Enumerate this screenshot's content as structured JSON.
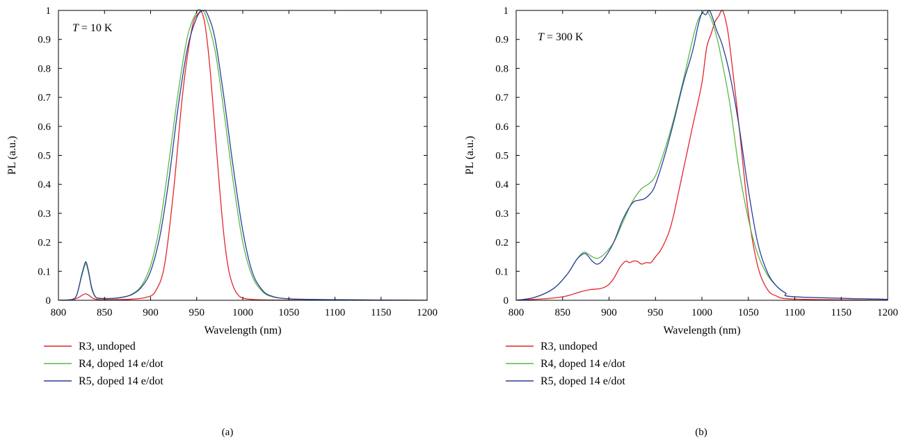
{
  "chart_data": [
    {
      "type": "line",
      "panel_label": "(a)",
      "annotation": {
        "symbol": "T",
        "text": " = 10 K"
      },
      "xlabel": "Wavelength (nm)",
      "ylabel": "PL (a.u.)",
      "xlim": [
        800,
        1200
      ],
      "ylim": [
        0,
        1
      ],
      "xticks": [
        "800",
        "850",
        "900",
        "950",
        "1000",
        "1050",
        "1100",
        "1150",
        "1200"
      ],
      "yticks": [
        "0",
        "0.1",
        "0.2",
        "0.3",
        "0.4",
        "0.5",
        "0.6",
        "0.7",
        "0.8",
        "0.9",
        "1"
      ],
      "legend_position": "below-left",
      "series": [
        {
          "name": "R3, undoped",
          "color": "#e3242b",
          "x": [
            800,
            815,
            822,
            826,
            830,
            834,
            838,
            845,
            860,
            880,
            895,
            905,
            915,
            925,
            935,
            945,
            952,
            956,
            960,
            965,
            970,
            975,
            980,
            985,
            990,
            995,
            1000,
            1010,
            1030,
            1100,
            1200
          ],
          "y": [
            0,
            0.002,
            0.01,
            0.018,
            0.022,
            0.015,
            0.006,
            0.002,
            0.002,
            0.004,
            0.01,
            0.03,
            0.12,
            0.38,
            0.72,
            0.94,
            0.99,
            0.99,
            0.93,
            0.78,
            0.58,
            0.38,
            0.21,
            0.1,
            0.045,
            0.018,
            0.008,
            0.003,
            0.001,
            0,
            0
          ]
        },
        {
          "name": "R4, doped 14 e/dot",
          "color": "#5ab848",
          "x": [
            800,
            815,
            820,
            825,
            828,
            830,
            833,
            836,
            840,
            845,
            860,
            870,
            880,
            890,
            900,
            910,
            920,
            930,
            940,
            950,
            955,
            960,
            970,
            980,
            990,
            1000,
            1010,
            1020,
            1030,
            1050,
            1100,
            1200
          ],
          "y": [
            0,
            0.003,
            0.02,
            0.08,
            0.115,
            0.125,
            0.09,
            0.04,
            0.012,
            0.006,
            0.006,
            0.01,
            0.022,
            0.05,
            0.12,
            0.26,
            0.48,
            0.72,
            0.91,
            0.995,
            1.0,
            0.98,
            0.86,
            0.64,
            0.4,
            0.2,
            0.085,
            0.035,
            0.014,
            0.005,
            0.002,
            0
          ]
        },
        {
          "name": "R5, doped 14 e/dot",
          "color": "#2a3c9c",
          "x": [
            800,
            815,
            820,
            825,
            828,
            830,
            833,
            836,
            840,
            845,
            860,
            870,
            880,
            890,
            900,
            910,
            920,
            930,
            940,
            950,
            957,
            962,
            970,
            980,
            990,
            1000,
            1010,
            1020,
            1030,
            1050,
            1100,
            1200
          ],
          "y": [
            0,
            0.003,
            0.02,
            0.085,
            0.12,
            0.132,
            0.095,
            0.045,
            0.013,
            0.007,
            0.007,
            0.011,
            0.02,
            0.045,
            0.1,
            0.22,
            0.42,
            0.67,
            0.87,
            0.975,
            1.0,
            0.985,
            0.9,
            0.69,
            0.45,
            0.24,
            0.1,
            0.04,
            0.016,
            0.005,
            0.002,
            0
          ]
        }
      ]
    },
    {
      "type": "line",
      "panel_label": "(b)",
      "annotation": {
        "symbol": "T",
        "text": " = 300 K"
      },
      "xlabel": "Wavelength (nm)",
      "ylabel": "PL (a.u.)",
      "xlim": [
        800,
        1200
      ],
      "ylim": [
        0,
        1
      ],
      "xticks": [
        "800",
        "850",
        "900",
        "950",
        "1000",
        "1050",
        "1100",
        "1150",
        "1200"
      ],
      "yticks": [
        "0",
        "0.1",
        "0.2",
        "0.3",
        "0.4",
        "0.5",
        "0.6",
        "0.7",
        "0.8",
        "0.9",
        "1"
      ],
      "legend_position": "below-left",
      "series": [
        {
          "name": "R3, undoped",
          "color": "#e3242b",
          "x": [
            800,
            830,
            850,
            860,
            870,
            880,
            890,
            898,
            905,
            912,
            918,
            922,
            926,
            930,
            935,
            940,
            945,
            950,
            955,
            960,
            965,
            970,
            980,
            990,
            1000,
            1005,
            1010,
            1014,
            1018,
            1022,
            1026,
            1030,
            1040,
            1050,
            1060,
            1070,
            1080,
            1100,
            1200
          ],
          "y": [
            0,
            0.005,
            0.012,
            0.02,
            0.03,
            0.037,
            0.04,
            0.05,
            0.075,
            0.115,
            0.135,
            0.13,
            0.135,
            0.135,
            0.125,
            0.13,
            0.13,
            0.15,
            0.17,
            0.2,
            0.24,
            0.3,
            0.45,
            0.6,
            0.75,
            0.87,
            0.92,
            0.96,
            0.98,
            1.0,
            0.96,
            0.88,
            0.6,
            0.3,
            0.12,
            0.04,
            0.015,
            0.004,
            0
          ]
        },
        {
          "name": "R4, doped 14 e/dot",
          "color": "#5ab848",
          "x": [
            800,
            820,
            840,
            855,
            865,
            872,
            876,
            882,
            888,
            895,
            905,
            915,
            925,
            935,
            942,
            950,
            960,
            970,
            980,
            990,
            995,
            1000,
            1005,
            1010,
            1015,
            1020,
            1030,
            1040,
            1050,
            1060,
            1070,
            1080,
            1090,
            1100,
            1200
          ],
          "y": [
            0,
            0.01,
            0.04,
            0.09,
            0.14,
            0.165,
            0.163,
            0.15,
            0.145,
            0.16,
            0.2,
            0.27,
            0.34,
            0.385,
            0.4,
            0.43,
            0.52,
            0.63,
            0.76,
            0.9,
            0.96,
            0.99,
            1.0,
            0.97,
            0.92,
            0.85,
            0.68,
            0.45,
            0.28,
            0.16,
            0.09,
            0.05,
            0.025,
            0.012,
            0.003
          ]
        },
        {
          "name": "R5, doped 14 e/dot",
          "color": "#2a3c9c",
          "x": [
            800,
            820,
            840,
            855,
            865,
            872,
            876,
            882,
            888,
            895,
            905,
            915,
            925,
            932,
            938,
            945,
            950,
            960,
            970,
            980,
            990,
            996,
            1000,
            1004,
            1008,
            1012,
            1016,
            1022,
            1030,
            1040,
            1050,
            1060,
            1070,
            1080,
            1090,
            1100,
            1200
          ],
          "y": [
            0,
            0.01,
            0.04,
            0.09,
            0.14,
            0.16,
            0.158,
            0.135,
            0.125,
            0.145,
            0.2,
            0.28,
            0.335,
            0.345,
            0.35,
            0.37,
            0.4,
            0.5,
            0.62,
            0.75,
            0.86,
            0.95,
            0.99,
            0.985,
            1.0,
            0.97,
            0.93,
            0.88,
            0.78,
            0.6,
            0.38,
            0.2,
            0.1,
            0.05,
            0.025,
            0.012,
            0.003
          ]
        }
      ]
    }
  ]
}
